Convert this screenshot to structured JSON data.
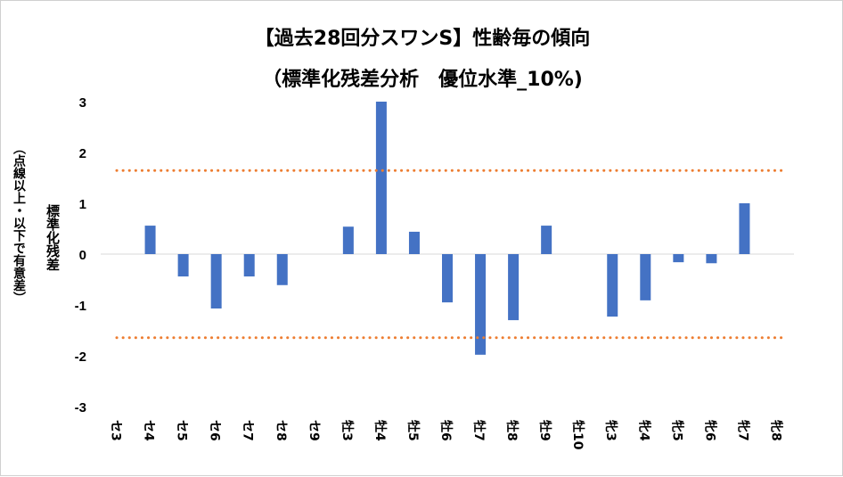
{
  "chart_data": {
    "type": "bar",
    "title": "【過去28回分スワンS】性齢毎の傾向",
    "subtitle": "（標準化残差分析　優位水準_10%)",
    "ylabel": "標準化残差",
    "ylabel2": "（点線以上・以下で有意差）",
    "ylim": [
      -3,
      3
    ],
    "yticks": [
      3,
      2,
      1,
      0,
      -1,
      -2,
      -3
    ],
    "categories": [
      "セ3",
      "セ4",
      "セ5",
      "セ6",
      "セ7",
      "セ8",
      "セ9",
      "牡3",
      "牡4",
      "牡5",
      "牡6",
      "牡7",
      "牡8",
      "牡9",
      "牡10",
      "牝3",
      "牝4",
      "牝5",
      "牝6",
      "牝7",
      "牝8"
    ],
    "values": [
      0,
      0.56,
      -0.44,
      -1.07,
      -0.44,
      -0.61,
      0,
      0.54,
      3.0,
      0.44,
      -0.95,
      -1.98,
      -1.3,
      0.56,
      0,
      -1.23,
      -0.91,
      -0.16,
      -0.18,
      1.0,
      0
    ],
    "threshold": 1.645,
    "bar_color": "#4472C4",
    "threshold_color": "#ED7D31"
  }
}
